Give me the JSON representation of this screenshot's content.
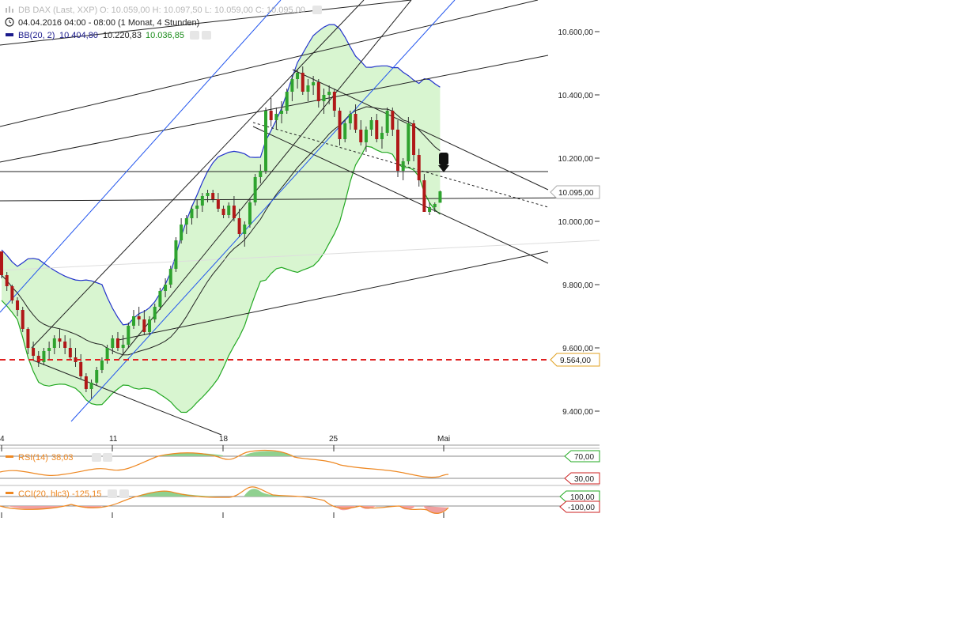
{
  "header": {
    "symbol": "DB DAX (Last, XXP)",
    "ohlc": "O: 10.059,00   H: 10.097,50   L: 10.059,00   C: 10.095,00",
    "period": "04.04.2016 04:00 - 08:00 (1 Monat, 4 Stunden)",
    "bb_label": "BB(20, 2)",
    "bb_upper": "10.404,80",
    "bb_mid": "10.220,83",
    "bb_lower": "10.036,85"
  },
  "price_axis": {
    "ticks": [
      "10.600,00",
      "10.400,00",
      "10.200,00",
      "10.000,00",
      "9.800,00",
      "9.600,00",
      "9.400,00"
    ],
    "tick_values": [
      10600,
      10400,
      10200,
      10000,
      9800,
      9600,
      9400
    ],
    "last_price_label": "10.095,00",
    "last_price": 10095,
    "hline_label": "9.564,00",
    "hline_value": 9564
  },
  "date_axis": {
    "labels": [
      "4",
      "11",
      "18",
      "25",
      "Mai"
    ]
  },
  "rsi": {
    "label": "RSI(14)",
    "value": "38,03",
    "upper_label": "70,00",
    "lower_label": "30,00"
  },
  "cci": {
    "label": "CCI(20, hlc3)",
    "value": "-125,15",
    "upper_label": "100,00",
    "lower_label": "-100,00"
  },
  "colors": {
    "bull": "#2ea32e",
    "bear": "#b01818",
    "band_fill": "#d8f5d0",
    "band_upper": "#2233cc",
    "band_lower": "#22a822",
    "band_mid": "#222222",
    "channel_blue": "#2255ee",
    "support_dash": "#e02020",
    "rsi_line": "#ee8822",
    "header_blue": "#1a1a8c",
    "header_green": "#1a8c1a"
  },
  "chart_data": {
    "type": "candlestick",
    "instrument": "DB DAX",
    "ylim": [
      9330,
      10720
    ],
    "candles": [
      [
        9905,
        9905,
        9820,
        9830
      ],
      [
        9830,
        9840,
        9780,
        9795
      ],
      [
        9795,
        9800,
        9740,
        9750
      ],
      [
        9750,
        9760,
        9700,
        9720
      ],
      [
        9720,
        9730,
        9650,
        9660
      ],
      [
        9660,
        9665,
        9580,
        9600
      ],
      [
        9600,
        9620,
        9560,
        9575
      ],
      [
        9575,
        9590,
        9540,
        9555
      ],
      [
        9555,
        9600,
        9545,
        9590
      ],
      [
        9590,
        9620,
        9560,
        9600
      ],
      [
        9600,
        9640,
        9580,
        9630
      ],
      [
        9630,
        9660,
        9600,
        9620
      ],
      [
        9620,
        9640,
        9580,
        9600
      ],
      [
        9600,
        9630,
        9560,
        9570
      ],
      [
        9570,
        9600,
        9540,
        9555
      ],
      [
        9555,
        9580,
        9500,
        9510
      ],
      [
        9510,
        9520,
        9460,
        9470
      ],
      [
        9470,
        9500,
        9440,
        9490
      ],
      [
        9490,
        9540,
        9480,
        9530
      ],
      [
        9530,
        9570,
        9520,
        9560
      ],
      [
        9560,
        9610,
        9550,
        9600
      ],
      [
        9600,
        9640,
        9580,
        9630
      ],
      [
        9630,
        9650,
        9590,
        9600
      ],
      [
        9600,
        9640,
        9580,
        9610
      ],
      [
        9610,
        9680,
        9600,
        9670
      ],
      [
        9670,
        9720,
        9660,
        9700
      ],
      [
        9700,
        9730,
        9670,
        9690
      ],
      [
        9690,
        9720,
        9640,
        9650
      ],
      [
        9650,
        9700,
        9640,
        9690
      ],
      [
        9690,
        9740,
        9680,
        9730
      ],
      [
        9730,
        9790,
        9720,
        9780
      ],
      [
        9780,
        9820,
        9760,
        9800
      ],
      [
        9800,
        9860,
        9790,
        9850
      ],
      [
        9850,
        9950,
        9840,
        9940
      ],
      [
        9940,
        10010,
        9930,
        9990
      ],
      [
        9990,
        10020,
        9960,
        10010
      ],
      [
        10010,
        10050,
        9990,
        10040
      ],
      [
        10040,
        10070,
        10010,
        10050
      ],
      [
        10050,
        10090,
        10030,
        10080
      ],
      [
        10080,
        10100,
        10060,
        10090
      ],
      [
        10090,
        10100,
        10060,
        10070
      ],
      [
        10070,
        10090,
        10030,
        10040
      ],
      [
        10040,
        10050,
        10010,
        10020
      ],
      [
        10020,
        10060,
        10010,
        10050
      ],
      [
        10050,
        10080,
        10000,
        10010
      ],
      [
        10010,
        10040,
        9950,
        9960
      ],
      [
        9960,
        10000,
        9920,
        9990
      ],
      [
        9990,
        10070,
        9980,
        10060
      ],
      [
        10060,
        10150,
        10050,
        10140
      ],
      [
        10140,
        10180,
        10120,
        10160
      ],
      [
        10160,
        10360,
        10150,
        10350
      ],
      [
        10350,
        10390,
        10300,
        10320
      ],
      [
        10320,
        10360,
        10290,
        10340
      ],
      [
        10340,
        10380,
        10310,
        10350
      ],
      [
        10350,
        10420,
        10340,
        10410
      ],
      [
        10410,
        10460,
        10380,
        10450
      ],
      [
        10450,
        10480,
        10420,
        10470
      ],
      [
        10470,
        10490,
        10400,
        10410
      ],
      [
        10410,
        10450,
        10380,
        10430
      ],
      [
        10430,
        10460,
        10400,
        10440
      ],
      [
        10440,
        10450,
        10360,
        10380
      ],
      [
        10380,
        10420,
        10340,
        10400
      ],
      [
        10400,
        10430,
        10370,
        10410
      ],
      [
        10410,
        10420,
        10330,
        10350
      ],
      [
        10350,
        10360,
        10240,
        10260
      ],
      [
        10260,
        10320,
        10250,
        10310
      ],
      [
        10310,
        10350,
        10290,
        10340
      ],
      [
        10340,
        10370,
        10280,
        10290
      ],
      [
        10290,
        10320,
        10240,
        10250
      ],
      [
        10250,
        10300,
        10220,
        10290
      ],
      [
        10290,
        10330,
        10270,
        10320
      ],
      [
        10320,
        10340,
        10250,
        10260
      ],
      [
        10260,
        10300,
        10230,
        10280
      ],
      [
        10280,
        10360,
        10270,
        10350
      ],
      [
        10350,
        10360,
        10270,
        10290
      ],
      [
        10290,
        10320,
        10140,
        10160
      ],
      [
        10160,
        10200,
        10130,
        10190
      ],
      [
        10190,
        10330,
        10180,
        10310
      ],
      [
        10310,
        10320,
        10190,
        10210
      ],
      [
        10210,
        10230,
        10110,
        10130
      ],
      [
        10130,
        10150,
        10030,
        10030
      ],
      [
        10030,
        10060,
        10020,
        10045
      ],
      [
        10045,
        10060,
        10030,
        10055
      ],
      [
        10059,
        10097.5,
        10059,
        10095
      ]
    ]
  }
}
